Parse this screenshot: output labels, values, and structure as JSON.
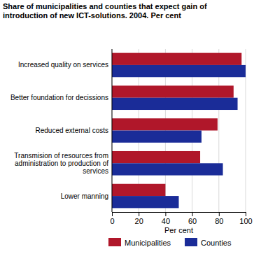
{
  "chart_data": {
    "type": "bar",
    "orientation": "horizontal",
    "title": "Share of municipalities and counties that expect gain of introduction of new ICT-solutions. 2004. Per cent",
    "x_label": "Per cent",
    "categories": [
      "Increased quality on services",
      "Better foundation for decissions",
      "Reduced external costs",
      "Transmision of resources from administration to production of services",
      "Lower manning"
    ],
    "series": [
      {
        "name": "Municipalities",
        "color": "#b0172a",
        "values": [
          97,
          91,
          79,
          66,
          40
        ]
      },
      {
        "name": "Counties",
        "color": "#1a2c98",
        "values": [
          100,
          94,
          67,
          83,
          50
        ]
      }
    ],
    "xlim": [
      0,
      100
    ],
    "xticks": [
      0,
      20,
      40,
      60,
      80,
      100
    ],
    "grid": true,
    "legend": "bottom"
  }
}
